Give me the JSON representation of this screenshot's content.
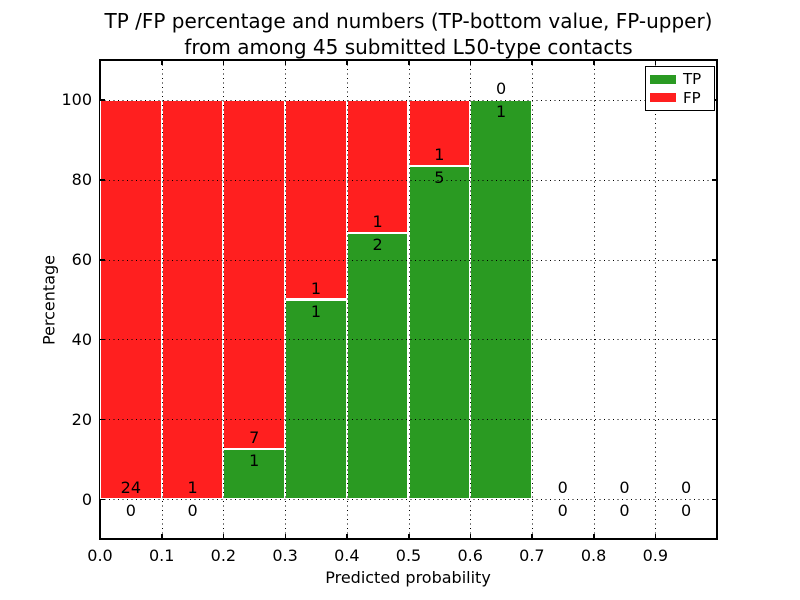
{
  "title": {
    "line1": "TP /FP percentage and numbers (TP-bottom value, FP-upper)",
    "line2": "from among 45 submitted L50-type contacts"
  },
  "chart_data": {
    "type": "bar",
    "stacked": true,
    "normalized": "each bar scaled to 100%, TP on bottom (green), FP on top (red)",
    "title": "TP /FP percentage and numbers (TP-bottom value, FP-upper) from among 45 submitted L50-type contacts",
    "xlabel": "Predicted probability",
    "ylabel": "Percentage",
    "total_contacts": 45,
    "xlim": [
      0.0,
      1.0
    ],
    "ylim": [
      -10,
      110
    ],
    "grid": "dotted black, both axes",
    "xticks": [
      "0.0",
      "0.1",
      "0.2",
      "0.3",
      "0.4",
      "0.5",
      "0.6",
      "0.7",
      "0.8",
      "0.9"
    ],
    "yticks": [
      "0",
      "20",
      "40",
      "60",
      "80",
      "100"
    ],
    "ytick_values": [
      0,
      20,
      40,
      60,
      80,
      100
    ],
    "bin_width": 0.1,
    "bins": [
      {
        "range": [
          0.0,
          0.1
        ],
        "tp": 0,
        "fp": 24
      },
      {
        "range": [
          0.1,
          0.2
        ],
        "tp": 0,
        "fp": 1
      },
      {
        "range": [
          0.2,
          0.3
        ],
        "tp": 1,
        "fp": 7
      },
      {
        "range": [
          0.3,
          0.4
        ],
        "tp": 1,
        "fp": 1
      },
      {
        "range": [
          0.4,
          0.5
        ],
        "tp": 2,
        "fp": 1
      },
      {
        "range": [
          0.5,
          0.6
        ],
        "tp": 5,
        "fp": 1
      },
      {
        "range": [
          0.6,
          0.7
        ],
        "tp": 1,
        "fp": 0
      },
      {
        "range": [
          0.7,
          0.8
        ],
        "tp": 0,
        "fp": 0
      },
      {
        "range": [
          0.8,
          0.9
        ],
        "tp": 0,
        "fp": 0
      },
      {
        "range": [
          0.9,
          1.0
        ],
        "tp": 0,
        "fp": 0
      }
    ],
    "series": [
      {
        "name": "TP",
        "color": "#2a9a22",
        "values": [
          0,
          0,
          1,
          1,
          2,
          5,
          1,
          0,
          0,
          0
        ]
      },
      {
        "name": "FP",
        "color": "#ff1f1f",
        "values": [
          24,
          1,
          7,
          1,
          1,
          1,
          0,
          0,
          0,
          0
        ]
      }
    ],
    "legend": {
      "position": "upper right",
      "entries": [
        {
          "label": "TP",
          "color": "#2a9a22"
        },
        {
          "label": "FP",
          "color": "#ff1f1f"
        }
      ]
    },
    "colors": {
      "tp_green": "#2a9a22",
      "fp_red": "#ff1f1f",
      "text": "#000000",
      "background": "#ffffff"
    }
  }
}
